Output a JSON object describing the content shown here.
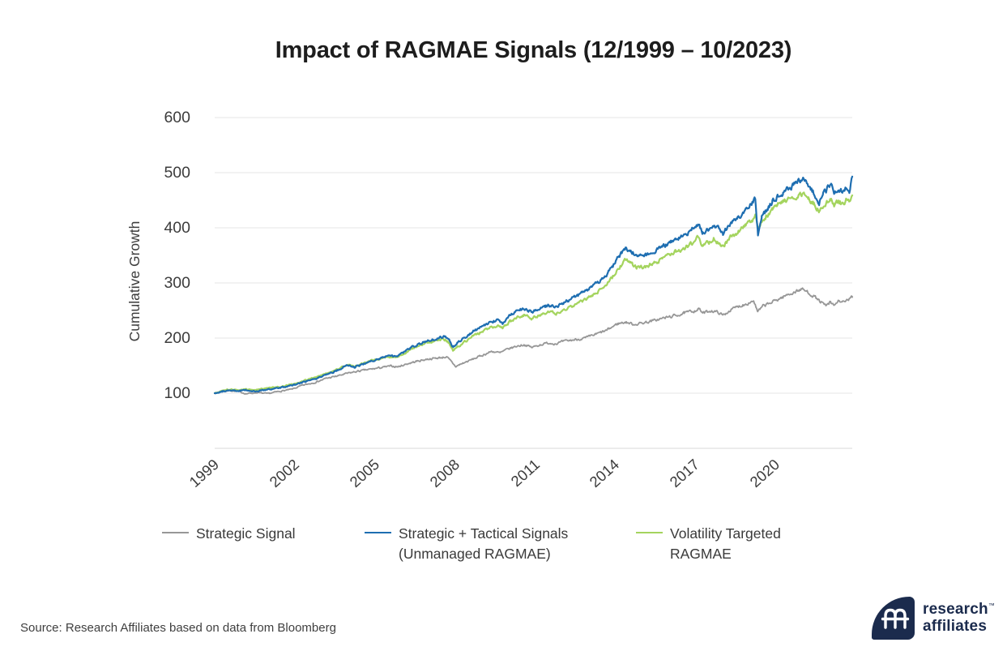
{
  "title": "Impact of RAGMAE Signals (12/1999 – 10/2023)",
  "y_axis": {
    "label": "Cumulative Growth",
    "ticks": [
      600,
      500,
      400,
      300,
      200,
      100
    ]
  },
  "x_axis": {
    "tick_years": [
      1999,
      2002,
      2005,
      2008,
      2011,
      2014,
      2017,
      2020
    ]
  },
  "legend": [
    {
      "label": "Strategic Signal",
      "label2": "",
      "color": "#979797"
    },
    {
      "label": "Strategic + Tactical Signals",
      "label2": "(Unmanaged RAGMAE)",
      "color": "#1e6eb1"
    },
    {
      "label": "Volatility Targeted",
      "label2": "RAGMAE",
      "color": "#a4d45e"
    }
  ],
  "source": "Source: Research Affiliates based on data from Bloomberg",
  "logo": {
    "line1": "research",
    "tm": "™",
    "line2": "affiliates",
    "color": "#1b2b4d"
  },
  "colors": {
    "gridline": "#eeeeee",
    "baseline": "#e6e6e6",
    "background": "#ffffff"
  },
  "chart_data": {
    "type": "line",
    "title": "Impact of RAGMAE Signals (12/1999 – 10/2023)",
    "xlabel": "",
    "ylabel": "Cumulative Growth",
    "ylim": [
      0,
      600
    ],
    "y_ticks": [
      100,
      200,
      300,
      400,
      500,
      600
    ],
    "x_range": [
      1999.92,
      2023.79
    ],
    "x_tick_years": [
      1999,
      2002,
      2005,
      2008,
      2011,
      2014,
      2017,
      2020
    ],
    "tick_alignment": "year_end",
    "grid": "horizontal",
    "legend_position": "bottom",
    "noise_amplitude": 1.8,
    "noise_seed": 7,
    "series": [
      {
        "name": "Strategic Signal",
        "color": "#979797",
        "line_width": 1.8,
        "keypoints": [
          [
            1999.92,
            100
          ],
          [
            2000.2,
            103
          ],
          [
            2000.5,
            105
          ],
          [
            2000.8,
            103
          ],
          [
            2001.1,
            99
          ],
          [
            2001.5,
            101
          ],
          [
            2001.9,
            99
          ],
          [
            2002.3,
            103
          ],
          [
            2002.8,
            107
          ],
          [
            2003.2,
            114
          ],
          [
            2003.7,
            120
          ],
          [
            2004.1,
            127
          ],
          [
            2004.5,
            131
          ],
          [
            2004.9,
            136
          ],
          [
            2005.3,
            140
          ],
          [
            2005.7,
            143
          ],
          [
            2006.1,
            146
          ],
          [
            2006.5,
            149
          ],
          [
            2006.8,
            148
          ],
          [
            2007.1,
            153
          ],
          [
            2007.5,
            158
          ],
          [
            2007.9,
            162
          ],
          [
            2008.3,
            164
          ],
          [
            2008.6,
            166
          ],
          [
            2008.8,
            156
          ],
          [
            2008.95,
            148
          ],
          [
            2009.1,
            152
          ],
          [
            2009.4,
            158
          ],
          [
            2009.7,
            164
          ],
          [
            2010.0,
            170
          ],
          [
            2010.3,
            176
          ],
          [
            2010.6,
            173
          ],
          [
            2010.9,
            180
          ],
          [
            2011.2,
            185
          ],
          [
            2011.5,
            188
          ],
          [
            2011.8,
            183
          ],
          [
            2012.1,
            188
          ],
          [
            2012.4,
            191
          ],
          [
            2012.7,
            190
          ],
          [
            2013.0,
            194
          ],
          [
            2013.4,
            197
          ],
          [
            2013.8,
            200
          ],
          [
            2014.2,
            207
          ],
          [
            2014.6,
            214
          ],
          [
            2015.0,
            226
          ],
          [
            2015.3,
            229
          ],
          [
            2015.6,
            225
          ],
          [
            2015.9,
            227
          ],
          [
            2016.3,
            231
          ],
          [
            2016.7,
            236
          ],
          [
            2017.1,
            240
          ],
          [
            2017.5,
            245
          ],
          [
            2017.9,
            250
          ],
          [
            2018.05,
            253
          ],
          [
            2018.2,
            245
          ],
          [
            2018.5,
            250
          ],
          [
            2018.8,
            246
          ],
          [
            2018.95,
            241
          ],
          [
            2019.2,
            250
          ],
          [
            2019.5,
            257
          ],
          [
            2019.8,
            262
          ],
          [
            2020.1,
            268
          ],
          [
            2020.25,
            247
          ],
          [
            2020.45,
            258
          ],
          [
            2020.7,
            263
          ],
          [
            2021.0,
            270
          ],
          [
            2021.3,
            277
          ],
          [
            2021.6,
            283
          ],
          [
            2021.9,
            289
          ],
          [
            2022.1,
            284
          ],
          [
            2022.35,
            276
          ],
          [
            2022.6,
            266
          ],
          [
            2022.8,
            258
          ],
          [
            2022.95,
            264
          ],
          [
            2023.1,
            259
          ],
          [
            2023.3,
            268
          ],
          [
            2023.5,
            264
          ],
          [
            2023.65,
            270
          ],
          [
            2023.79,
            274
          ]
        ]
      },
      {
        "name": "Volatility Targeted RAGMAE",
        "color": "#a4d45e",
        "line_width": 2.2,
        "keypoints": [
          [
            1999.92,
            100
          ],
          [
            2000.2,
            104
          ],
          [
            2000.5,
            107
          ],
          [
            2000.8,
            105
          ],
          [
            2001.1,
            107
          ],
          [
            2001.4,
            105
          ],
          [
            2001.75,
            108
          ],
          [
            2002.1,
            110
          ],
          [
            2002.5,
            113
          ],
          [
            2002.9,
            117
          ],
          [
            2003.3,
            123
          ],
          [
            2003.7,
            129
          ],
          [
            2004.0,
            134
          ],
          [
            2004.4,
            141
          ],
          [
            2004.75,
            149
          ],
          [
            2004.95,
            152
          ],
          [
            2005.15,
            148
          ],
          [
            2005.5,
            154
          ],
          [
            2005.8,
            159
          ],
          [
            2006.1,
            163
          ],
          [
            2006.4,
            167
          ],
          [
            2006.7,
            165
          ],
          [
            2007.0,
            172
          ],
          [
            2007.3,
            180
          ],
          [
            2007.6,
            187
          ],
          [
            2007.9,
            192
          ],
          [
            2008.2,
            194
          ],
          [
            2008.5,
            199
          ],
          [
            2008.7,
            191
          ],
          [
            2008.85,
            177
          ],
          [
            2009.0,
            184
          ],
          [
            2009.3,
            194
          ],
          [
            2009.6,
            203
          ],
          [
            2009.9,
            211
          ],
          [
            2010.2,
            218
          ],
          [
            2010.5,
            223
          ],
          [
            2010.7,
            218
          ],
          [
            2010.95,
            229
          ],
          [
            2011.2,
            236
          ],
          [
            2011.5,
            242
          ],
          [
            2011.8,
            235
          ],
          [
            2012.1,
            242
          ],
          [
            2012.4,
            247
          ],
          [
            2012.7,
            245
          ],
          [
            2013.0,
            252
          ],
          [
            2013.3,
            259
          ],
          [
            2013.6,
            265
          ],
          [
            2013.9,
            273
          ],
          [
            2014.2,
            282
          ],
          [
            2014.5,
            293
          ],
          [
            2014.8,
            309
          ],
          [
            2015.05,
            327
          ],
          [
            2015.3,
            342
          ],
          [
            2015.55,
            334
          ],
          [
            2015.8,
            327
          ],
          [
            2016.1,
            330
          ],
          [
            2016.4,
            337
          ],
          [
            2016.7,
            344
          ],
          [
            2017.0,
            352
          ],
          [
            2017.3,
            359
          ],
          [
            2017.6,
            366
          ],
          [
            2017.85,
            373
          ],
          [
            2018.04,
            384
          ],
          [
            2018.18,
            367
          ],
          [
            2018.4,
            373
          ],
          [
            2018.6,
            379
          ],
          [
            2018.8,
            373
          ],
          [
            2018.95,
            366
          ],
          [
            2019.2,
            381
          ],
          [
            2019.5,
            392
          ],
          [
            2019.8,
            403
          ],
          [
            2020.05,
            415
          ],
          [
            2020.16,
            421
          ],
          [
            2020.26,
            399
          ],
          [
            2020.4,
            413
          ],
          [
            2020.6,
            423
          ],
          [
            2020.8,
            433
          ],
          [
            2021.0,
            441
          ],
          [
            2021.2,
            447
          ],
          [
            2021.45,
            452
          ],
          [
            2021.7,
            458
          ],
          [
            2021.95,
            464
          ],
          [
            2022.15,
            453
          ],
          [
            2022.35,
            444
          ],
          [
            2022.55,
            431
          ],
          [
            2022.7,
            441
          ],
          [
            2022.85,
            448
          ],
          [
            2023.0,
            452
          ],
          [
            2023.12,
            440
          ],
          [
            2023.28,
            448
          ],
          [
            2023.42,
            443
          ],
          [
            2023.56,
            450
          ],
          [
            2023.68,
            446
          ],
          [
            2023.79,
            459
          ]
        ]
      },
      {
        "name": "Strategic + Tactical Signals (Unmanaged RAGMAE)",
        "color": "#1e6eb1",
        "line_width": 2.2,
        "keypoints": [
          [
            1999.92,
            100
          ],
          [
            2000.2,
            103
          ],
          [
            2000.5,
            106
          ],
          [
            2000.8,
            104
          ],
          [
            2001.1,
            106
          ],
          [
            2001.4,
            103
          ],
          [
            2001.75,
            106
          ],
          [
            2002.1,
            108
          ],
          [
            2002.5,
            111
          ],
          [
            2002.9,
            115
          ],
          [
            2003.3,
            121
          ],
          [
            2003.7,
            127
          ],
          [
            2004.0,
            132
          ],
          [
            2004.4,
            139
          ],
          [
            2004.75,
            148
          ],
          [
            2004.95,
            151
          ],
          [
            2005.15,
            147
          ],
          [
            2005.5,
            153
          ],
          [
            2005.8,
            158
          ],
          [
            2006.1,
            163
          ],
          [
            2006.4,
            168
          ],
          [
            2006.7,
            166
          ],
          [
            2007.0,
            174
          ],
          [
            2007.3,
            183
          ],
          [
            2007.6,
            190
          ],
          [
            2007.9,
            195
          ],
          [
            2008.2,
            198
          ],
          [
            2008.5,
            203
          ],
          [
            2008.7,
            196
          ],
          [
            2008.85,
            184
          ],
          [
            2009.0,
            191
          ],
          [
            2009.3,
            202
          ],
          [
            2009.6,
            212
          ],
          [
            2009.9,
            220
          ],
          [
            2010.2,
            228
          ],
          [
            2010.5,
            233
          ],
          [
            2010.7,
            228
          ],
          [
            2010.95,
            240
          ],
          [
            2011.2,
            248
          ],
          [
            2011.5,
            254
          ],
          [
            2011.8,
            247
          ],
          [
            2012.1,
            254
          ],
          [
            2012.4,
            259
          ],
          [
            2012.7,
            257
          ],
          [
            2013.0,
            265
          ],
          [
            2013.3,
            272
          ],
          [
            2013.6,
            279
          ],
          [
            2013.9,
            288
          ],
          [
            2014.2,
            298
          ],
          [
            2014.5,
            310
          ],
          [
            2014.8,
            328
          ],
          [
            2015.05,
            348
          ],
          [
            2015.3,
            364
          ],
          [
            2015.55,
            356
          ],
          [
            2015.8,
            348
          ],
          [
            2016.1,
            351
          ],
          [
            2016.4,
            358
          ],
          [
            2016.7,
            366
          ],
          [
            2017.0,
            375
          ],
          [
            2017.3,
            383
          ],
          [
            2017.6,
            391
          ],
          [
            2017.85,
            399
          ],
          [
            2018.04,
            410
          ],
          [
            2018.18,
            391
          ],
          [
            2018.4,
            397
          ],
          [
            2018.6,
            404
          ],
          [
            2018.8,
            397
          ],
          [
            2018.95,
            389
          ],
          [
            2019.2,
            407
          ],
          [
            2019.5,
            419
          ],
          [
            2019.8,
            431
          ],
          [
            2020.05,
            446
          ],
          [
            2020.16,
            455
          ],
          [
            2020.26,
            386
          ],
          [
            2020.4,
            418
          ],
          [
            2020.6,
            434
          ],
          [
            2020.8,
            447
          ],
          [
            2021.0,
            457
          ],
          [
            2021.2,
            464
          ],
          [
            2021.45,
            472
          ],
          [
            2021.7,
            482
          ],
          [
            2021.95,
            491
          ],
          [
            2022.15,
            477
          ],
          [
            2022.35,
            463
          ],
          [
            2022.55,
            447
          ],
          [
            2022.7,
            461
          ],
          [
            2022.85,
            470
          ],
          [
            2023.0,
            477
          ],
          [
            2023.12,
            463
          ],
          [
            2023.28,
            472
          ],
          [
            2023.42,
            466
          ],
          [
            2023.56,
            474
          ],
          [
            2023.68,
            469
          ],
          [
            2023.79,
            493
          ]
        ]
      }
    ]
  }
}
